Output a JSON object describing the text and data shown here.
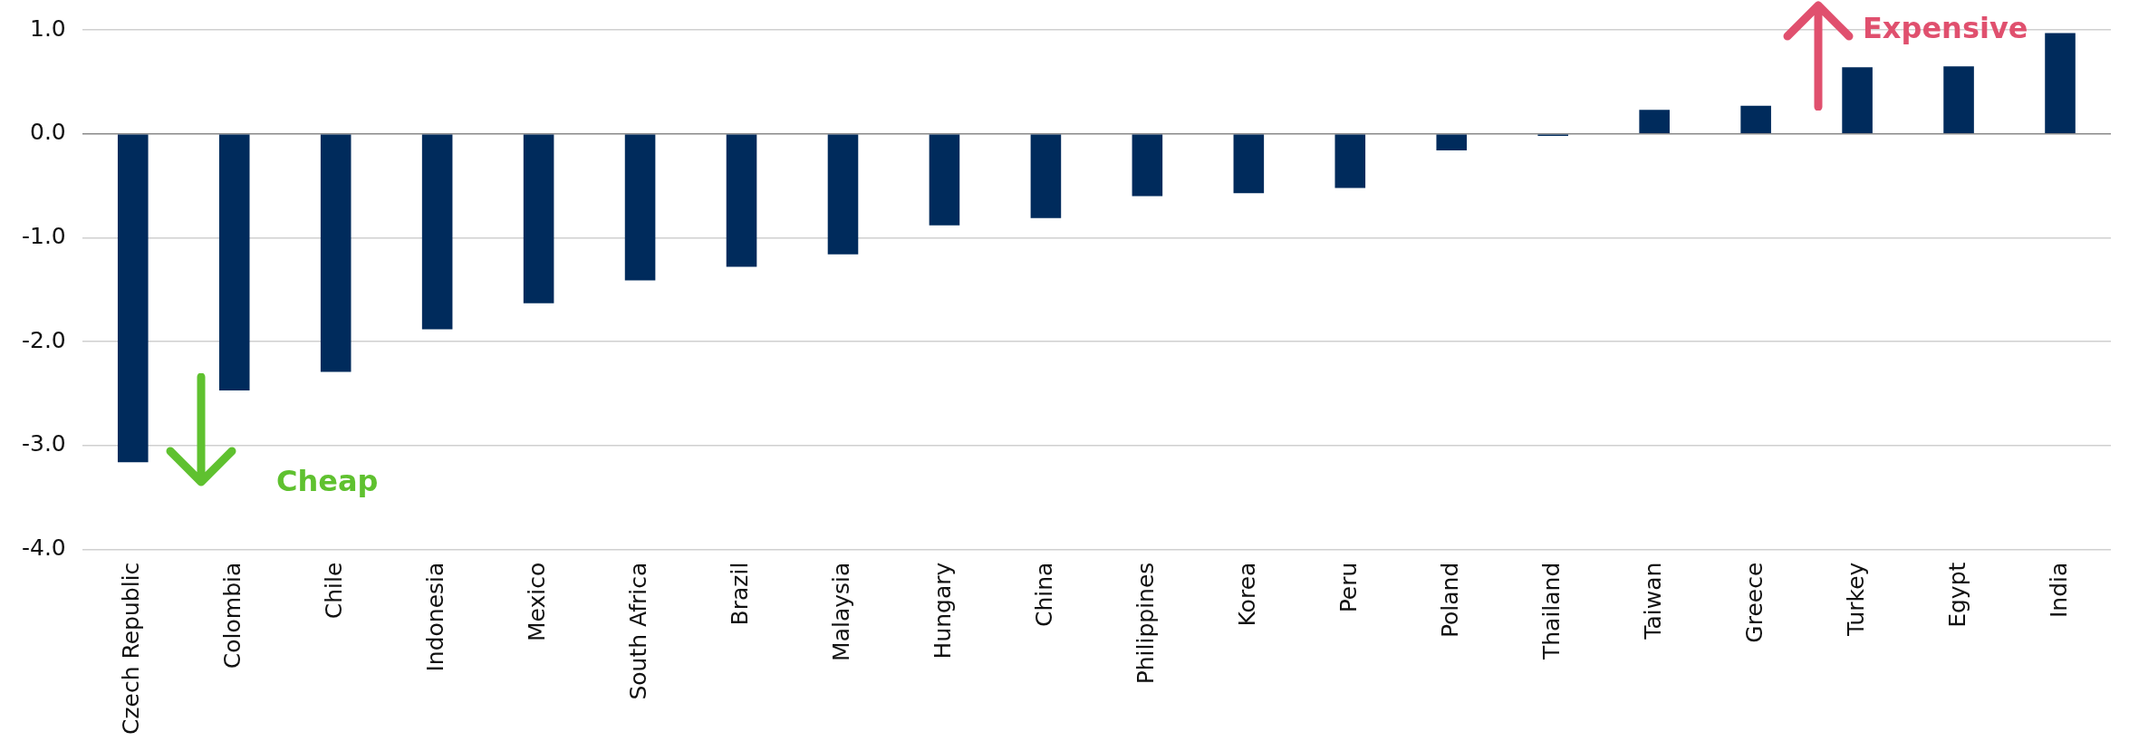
{
  "chart_data": {
    "type": "bar",
    "categories": [
      "Czech Republic",
      "Colombia",
      "Chile",
      "Indonesia",
      "Mexico",
      "South Africa",
      "Brazil",
      "Malaysia",
      "Hungary",
      "China",
      "Philippines",
      "Korea",
      "Peru",
      "Poland",
      "Thailand",
      "Taiwan",
      "Greece",
      "Turkey",
      "Egypt",
      "India"
    ],
    "values": [
      -3.16,
      -2.47,
      -2.29,
      -1.88,
      -1.63,
      -1.41,
      -1.28,
      -1.16,
      -0.88,
      -0.81,
      -0.6,
      -0.57,
      -0.52,
      -0.16,
      -0.02,
      0.23,
      0.27,
      0.64,
      0.65,
      0.97
    ],
    "color": "#002b5c",
    "ylim": [
      -4,
      1
    ],
    "yticks": [
      {
        "value": -4,
        "label": "-4.0"
      },
      {
        "value": -3,
        "label": "-3.0"
      },
      {
        "value": -2,
        "label": "-2.0"
      },
      {
        "value": -1,
        "label": "-1.0"
      },
      {
        "value": 0,
        "label": "0.0"
      },
      {
        "value": 1,
        "label": "1.0"
      }
    ],
    "grid": "y",
    "annotations": [
      "Cheap",
      "Expensive"
    ]
  }
}
